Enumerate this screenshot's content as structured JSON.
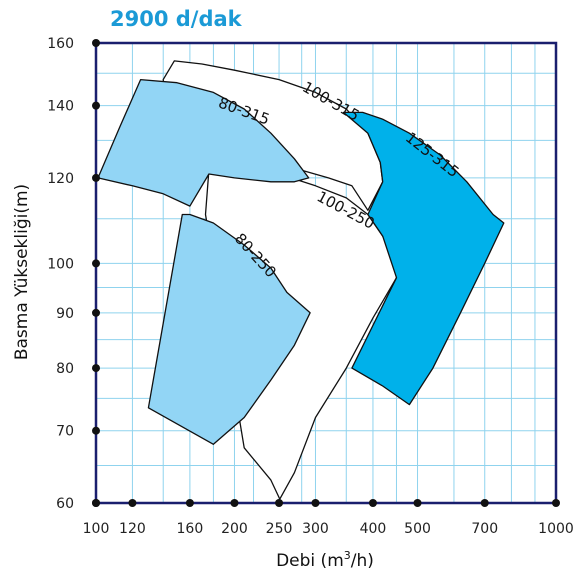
{
  "chart_data": {
    "type": "area",
    "title": "2900 d/dak",
    "title_color": "#1b9ad6",
    "xlabel_prefix": "Debi (m",
    "xlabel_sup": "3",
    "xlabel_suffix": "/h)",
    "ylabel": "Basma Yüksekliği(m)",
    "x_scale": "log",
    "y_scale": "log",
    "xlim": [
      100,
      1000
    ],
    "ylim": [
      60,
      160
    ],
    "x_ticks": [
      100,
      120,
      160,
      200,
      250,
      300,
      400,
      500,
      700,
      1000
    ],
    "y_ticks": [
      60,
      70,
      80,
      90,
      100,
      120,
      140,
      160
    ],
    "x_grid": [
      100,
      120,
      140,
      160,
      180,
      200,
      220,
      250,
      280,
      300,
      350,
      400,
      450,
      500,
      600,
      700,
      800,
      900,
      1000
    ],
    "y_grid": [
      60,
      65,
      70,
      75,
      80,
      85,
      90,
      95,
      100,
      110,
      120,
      130,
      140,
      150,
      160
    ],
    "grid": true,
    "grid_color": "#8fd3ee",
    "frame_color": "#1a1f6e",
    "regions": [
      {
        "name": "100-250",
        "fill": "#ffffff",
        "points": [
          [
            176,
            122
          ],
          [
            200,
            123
          ],
          [
            250,
            121
          ],
          [
            300,
            118
          ],
          [
            350,
            115
          ],
          [
            390,
            111
          ],
          [
            420,
            106
          ],
          [
            450,
            100
          ],
          [
            450,
            97
          ],
          [
            400,
            89
          ],
          [
            350,
            80
          ],
          [
            300,
            72
          ],
          [
            270,
            64
          ],
          [
            251,
            60.5
          ],
          [
            240,
            63
          ],
          [
            210,
            67.5
          ],
          [
            173,
            111
          ]
        ],
        "label_at": [
          345,
          111
        ],
        "label_rotate": 28
      },
      {
        "name": "100-315",
        "fill": "#ffffff",
        "points": [
          [
            148,
            154
          ],
          [
            170,
            153
          ],
          [
            200,
            151
          ],
          [
            250,
            148
          ],
          [
            300,
            144
          ],
          [
            350,
            139
          ],
          [
            390,
            132
          ],
          [
            415,
            124
          ],
          [
            420,
            119
          ],
          [
            390,
            112
          ],
          [
            360,
            118
          ],
          [
            320,
            120
          ],
          [
            280,
            122
          ],
          [
            240,
            123.5
          ],
          [
            200,
            123
          ],
          [
            176,
            122
          ],
          [
            168,
            118
          ],
          [
            150,
            117
          ],
          [
            140,
            148
          ]
        ],
        "label_at": [
          320,
          140
        ],
        "label_rotate": 30
      },
      {
        "name": "125-315",
        "fill": "#00b1ea",
        "points": [
          [
            345,
            138
          ],
          [
            380,
            138
          ],
          [
            420,
            136
          ],
          [
            480,
            132
          ],
          [
            560,
            126
          ],
          [
            640,
            119
          ],
          [
            730,
            111
          ],
          [
            770,
            109
          ],
          [
            700,
            100
          ],
          [
            620,
            90
          ],
          [
            540,
            80
          ],
          [
            480,
            74
          ],
          [
            420,
            77
          ],
          [
            360,
            80
          ],
          [
            450,
            97
          ],
          [
            420,
            106
          ],
          [
            390,
            111
          ],
          [
            420,
            119
          ],
          [
            415,
            124
          ],
          [
            390,
            132
          ]
        ],
        "label_at": [
          530,
          125
        ],
        "label_rotate": 38
      },
      {
        "name": "80-315",
        "fill": "#92d5f5",
        "points": [
          [
            101,
            120
          ],
          [
            112,
            133
          ],
          [
            125,
            148
          ],
          [
            150,
            147
          ],
          [
            180,
            144
          ],
          [
            210,
            139
          ],
          [
            240,
            132
          ],
          [
            270,
            125
          ],
          [
            290,
            120
          ],
          [
            270,
            119
          ],
          [
            240,
            119
          ],
          [
            200,
            120
          ],
          [
            176,
            121
          ],
          [
            160,
            113
          ],
          [
            140,
            116
          ],
          [
            120,
            118
          ]
        ],
        "label_at": [
          208,
          137
        ],
        "label_rotate": 20
      },
      {
        "name": "80-250",
        "fill": "#92d5f5",
        "points": [
          [
            154,
            111
          ],
          [
            160,
            111
          ],
          [
            180,
            109
          ],
          [
            210,
            104
          ],
          [
            240,
            99
          ],
          [
            260,
            94
          ],
          [
            292,
            90
          ],
          [
            270,
            84
          ],
          [
            240,
            78
          ],
          [
            210,
            72
          ],
          [
            180,
            68
          ],
          [
            130,
            73.5
          ],
          [
            140,
            88
          ]
        ],
        "label_at": [
          218,
          101
        ],
        "label_rotate": 48
      }
    ]
  }
}
